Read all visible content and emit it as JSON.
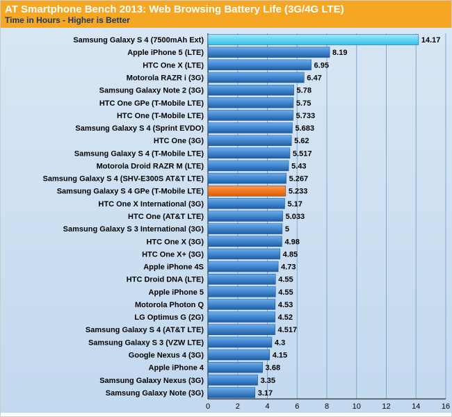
{
  "chart": {
    "type": "bar",
    "title": "AT Smartphone Bench 2013: Web Browsing Battery Life (3G/4G LTE)",
    "subtitle": "Time in Hours - Higher is Better",
    "title_bg": "#f5a623",
    "title_color": "#ffffff",
    "subtitle_color": "#1a3a6e",
    "plot_bg_top": "#d7e6f4",
    "plot_bg_bottom": "#c3d9ef",
    "grid_color": "#7fa6ce",
    "xmin": 0,
    "xmax": 16,
    "xtick_step": 2,
    "bar_normal_top": "#6aaef0",
    "bar_normal_bot": "#1d5fa8",
    "bar_highlight_top": "#9de7ff",
    "bar_highlight_bot": "#34c0e6",
    "bar_accent_top": "#ff9a4d",
    "bar_accent_bot": "#e65a00",
    "bars": [
      {
        "label": "Samsung Galaxy S 4 (7500mAh Ext)",
        "value": 14.17,
        "style": "highlight"
      },
      {
        "label": "Apple iPhone 5 (LTE)",
        "value": 8.19,
        "style": "normal"
      },
      {
        "label": "HTC One X (LTE)",
        "value": 6.95,
        "style": "normal"
      },
      {
        "label": "Motorola RAZR i (3G)",
        "value": 6.47,
        "style": "normal"
      },
      {
        "label": "Samsung Galaxy Note 2 (3G)",
        "value": 5.78,
        "style": "normal"
      },
      {
        "label": "HTC One GPe (T-Mobile LTE)",
        "value": 5.75,
        "style": "normal"
      },
      {
        "label": "HTC One (T-Mobile LTE)",
        "value": 5.733,
        "style": "normal"
      },
      {
        "label": "Samsung Galaxy S 4 (Sprint EVDO)",
        "value": 5.683,
        "style": "normal"
      },
      {
        "label": "HTC One (3G)",
        "value": 5.62,
        "style": "normal"
      },
      {
        "label": "Samsung Galaxy S 4 (T-Mobile LTE)",
        "value": 5.517,
        "style": "normal"
      },
      {
        "label": "Motorola Droid RAZR M (LTE)",
        "value": 5.43,
        "style": "normal"
      },
      {
        "label": "Samsung Galaxy S 4 (SHV-E300S AT&T LTE)",
        "value": 5.267,
        "style": "normal"
      },
      {
        "label": "Samsung Galaxy S 4 GPe (T-Mobile LTE)",
        "value": 5.233,
        "style": "accent"
      },
      {
        "label": "HTC One X International (3G)",
        "value": 5.17,
        "style": "normal"
      },
      {
        "label": "HTC One (AT&T LTE)",
        "value": 5.033,
        "style": "normal"
      },
      {
        "label": "Samsung Galaxy S 3 International (3G)",
        "value": 5,
        "style": "normal"
      },
      {
        "label": "HTC One X (3G)",
        "value": 4.98,
        "style": "normal"
      },
      {
        "label": "HTC One X+ (3G)",
        "value": 4.85,
        "style": "normal"
      },
      {
        "label": "Apple iPhone 4S",
        "value": 4.73,
        "style": "normal"
      },
      {
        "label": "HTC Droid DNA (LTE)",
        "value": 4.55,
        "style": "normal"
      },
      {
        "label": "Apple iPhone 5",
        "value": 4.55,
        "style": "normal"
      },
      {
        "label": "Motorola Photon Q",
        "value": 4.53,
        "style": "normal"
      },
      {
        "label": "LG Optimus G (2G)",
        "value": 4.52,
        "style": "normal"
      },
      {
        "label": "Samsung Galaxy S 4 (AT&T LTE)",
        "value": 4.517,
        "style": "normal"
      },
      {
        "label": "Samsung Galaxy S 3 (VZW LTE)",
        "value": 4.3,
        "style": "normal"
      },
      {
        "label": "Google Nexus 4 (3G)",
        "value": 4.15,
        "style": "normal"
      },
      {
        "label": "Apple iPhone 4",
        "value": 3.68,
        "style": "normal"
      },
      {
        "label": "Samsung Galaxy Nexus (3G)",
        "value": 3.35,
        "style": "normal"
      },
      {
        "label": "Samsung Galaxy Note (3G)",
        "value": 3.17,
        "style": "normal"
      }
    ]
  }
}
